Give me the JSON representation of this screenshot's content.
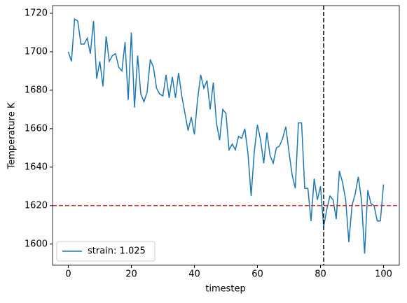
{
  "chart_data": {
    "type": "line",
    "xlabel": "timestep",
    "ylabel": "Temperature K",
    "x": [
      0,
      1,
      2,
      3,
      4,
      5,
      6,
      7,
      8,
      9,
      10,
      11,
      12,
      13,
      14,
      15,
      16,
      17,
      18,
      19,
      20,
      21,
      22,
      23,
      24,
      25,
      26,
      27,
      28,
      29,
      30,
      31,
      32,
      33,
      34,
      35,
      36,
      37,
      38,
      39,
      40,
      41,
      42,
      43,
      44,
      45,
      46,
      47,
      48,
      49,
      50,
      51,
      52,
      53,
      54,
      55,
      56,
      57,
      58,
      59,
      60,
      61,
      62,
      63,
      64,
      65,
      66,
      67,
      68,
      69,
      70,
      71,
      72,
      73,
      74,
      75,
      76,
      77,
      78,
      79,
      80,
      81,
      82,
      83,
      84,
      85,
      86,
      87,
      88,
      89,
      90,
      91,
      92,
      93,
      94,
      95,
      96,
      97,
      98,
      99,
      100
    ],
    "series": [
      {
        "name": "strain: 1.025",
        "color": "#1f77b4",
        "values": [
          1700,
          1695,
          1717,
          1716,
          1704,
          1704,
          1707,
          1699,
          1716,
          1686,
          1695,
          1682,
          1708,
          1695,
          1698,
          1699,
          1692,
          1690,
          1705,
          1675,
          1710,
          1671,
          1698,
          1678,
          1674,
          1679,
          1696,
          1692,
          1681,
          1678,
          1677,
          1688,
          1676,
          1687,
          1676,
          1689,
          1677,
          1668,
          1659,
          1666,
          1657,
          1675,
          1688,
          1681,
          1685,
          1670,
          1684,
          1663,
          1654,
          1670,
          1668,
          1649,
          1652,
          1649,
          1656,
          1655,
          1660,
          1647,
          1625,
          1648,
          1662,
          1654,
          1642,
          1658,
          1646,
          1642,
          1650,
          1651,
          1655,
          1661,
          1648,
          1636,
          1629,
          1663,
          1663,
          1629,
          1629,
          1612,
          1634,
          1623,
          1630,
          1609,
          1618,
          1625,
          1623,
          1613,
          1638,
          1632,
          1623,
          1601,
          1620,
          1626,
          1635,
          1623,
          1595,
          1628,
          1621,
          1620,
          1612,
          1612,
          1631
        ]
      }
    ],
    "xlim": [
      -5,
      105
    ],
    "xticks": [
      0,
      20,
      40,
      60,
      80,
      100
    ],
    "ylim": [
      1589,
      1724
    ],
    "yticks": [
      1600,
      1620,
      1640,
      1660,
      1680,
      1700,
      1720
    ],
    "reference_lines": [
      {
        "axis": "y",
        "value": 1620,
        "color": "#d62728"
      },
      {
        "axis": "x",
        "value": 81,
        "color": "#000000"
      }
    ],
    "legend": "lower left",
    "grid": false
  }
}
